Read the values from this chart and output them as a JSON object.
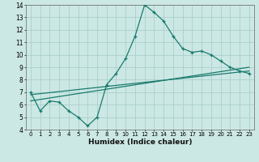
{
  "xlabel": "Humidex (Indice chaleur)",
  "ylabel": "",
  "background_color": "#cce8e4",
  "grid_color": "#aacfcb",
  "line_color": "#1a7a6e",
  "xlim": [
    -0.5,
    23.5
  ],
  "ylim": [
    4,
    14
  ],
  "xticks": [
    0,
    1,
    2,
    3,
    4,
    5,
    6,
    7,
    8,
    9,
    10,
    11,
    12,
    13,
    14,
    15,
    16,
    17,
    18,
    19,
    20,
    21,
    22,
    23
  ],
  "yticks": [
    4,
    5,
    6,
    7,
    8,
    9,
    10,
    11,
    12,
    13,
    14
  ],
  "main_x": [
    0,
    1,
    2,
    3,
    4,
    5,
    6,
    7,
    8,
    9,
    10,
    11,
    12,
    13,
    14,
    15,
    16,
    17,
    18,
    19,
    20,
    21,
    22,
    23
  ],
  "main_y": [
    7.0,
    5.5,
    6.3,
    6.2,
    5.5,
    5.0,
    4.3,
    5.0,
    7.6,
    8.5,
    9.7,
    11.5,
    14.0,
    13.4,
    12.7,
    11.5,
    10.5,
    10.2,
    10.3,
    10.0,
    9.5,
    9.0,
    8.7,
    8.5
  ],
  "line2_x": [
    0,
    23
  ],
  "line2_y": [
    6.8,
    8.7
  ],
  "line3_x": [
    0,
    23
  ],
  "line3_y": [
    6.3,
    9.0
  ]
}
